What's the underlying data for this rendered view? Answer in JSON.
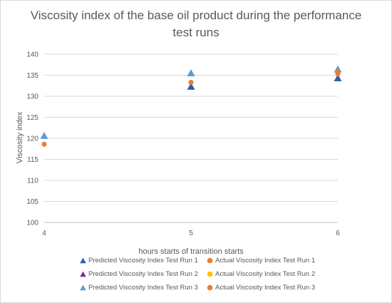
{
  "chart_data": {
    "type": "scatter",
    "title": "Viscosity index of the base oil product during the performance test runs",
    "xlabel": "hours starts of transition starts",
    "ylabel": "Viscosity index",
    "xlim": [
      4,
      6
    ],
    "ylim": [
      100,
      140
    ],
    "x_ticks": [
      4,
      5,
      6
    ],
    "y_ticks": [
      100,
      105,
      110,
      115,
      120,
      125,
      130,
      135,
      140
    ],
    "grid": "horizontal",
    "legend_position": "bottom",
    "series": [
      {
        "name": "Predicted Viscosity Index Test Run 1",
        "marker": "triangle",
        "color": "#2e5fa8",
        "points": [
          [
            5,
            132.3
          ],
          [
            6,
            134.3
          ]
        ]
      },
      {
        "name": "Actual Viscosity Index Test Run 1",
        "marker": "circle",
        "color": "#ed7d31",
        "points": [
          [
            5,
            133.3
          ],
          [
            6,
            135.3
          ]
        ]
      },
      {
        "name": "Predicted Viscosity Index Test Run 2",
        "marker": "triangle",
        "color": "#7030a0",
        "points": []
      },
      {
        "name": "Actual Viscosity Index Test Run 2",
        "marker": "circle",
        "color": "#ffc000",
        "points": []
      },
      {
        "name": "Predicted Viscosity Index Test Run 3",
        "marker": "triangle",
        "color": "#5b9bd5",
        "points": [
          [
            4,
            120.6
          ],
          [
            5,
            135.5
          ],
          [
            6,
            136.4
          ]
        ]
      },
      {
        "name": "Actual Viscosity Index Test Run 3",
        "marker": "circle",
        "color": "#ed7d31",
        "points": [
          [
            4,
            118.6
          ],
          [
            6,
            135.8
          ]
        ]
      }
    ]
  }
}
